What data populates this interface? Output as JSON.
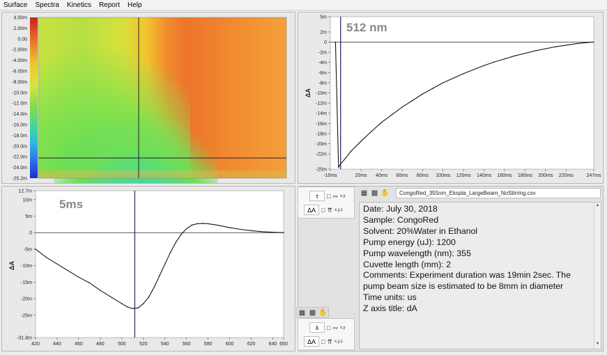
{
  "menu": [
    "Surface",
    "Spectra",
    "Kinetics",
    "Report",
    "Help"
  ],
  "surface_plot": {
    "y_ticks": [
      "4.00m",
      "2.00m",
      "0.00",
      "-2.00m",
      "-4.00m",
      "-6.00m",
      "-8.00m",
      "-10.0m",
      "-12.0m",
      "-14.0m",
      "-16.0m",
      "-18.0m",
      "-20.0m",
      "-22.0m",
      "-24.0m",
      "-25.2m"
    ],
    "colorbar": [
      "#c4251c",
      "#e8702a",
      "#f0c32c",
      "#d9e33c",
      "#7fdc4e",
      "#3fd79a",
      "#30b8e2",
      "#2e78e8",
      "#1a2fd0"
    ],
    "cursor_wavelength": 512,
    "cursor_time": "5ms"
  },
  "kinetics": {
    "label": "512 nm",
    "ylabel": "ΔA",
    "y_ticks": [
      "5m",
      "2m",
      "0",
      "-2m",
      "-4m",
      "-6m",
      "-8m",
      "-10m",
      "-12m",
      "-14m",
      "-16m",
      "-18m",
      "-20m",
      "-22m",
      "-25m"
    ],
    "x_ticks": [
      "-10ms",
      "20ms",
      "40ms",
      "60ms",
      "80ms",
      "100ms",
      "120ms",
      "140ms",
      "160ms",
      "180ms",
      "200ms",
      "220ms",
      "247ms"
    ]
  },
  "spectrum": {
    "label": "5ms",
    "ylabel": "ΔA",
    "y_ticks": [
      "12.7m",
      "10m",
      "5m",
      "0",
      "-5m",
      "-10m",
      "-15m",
      "-20m",
      "-25m",
      "-31.8m"
    ],
    "x_ticks": [
      "420",
      "440",
      "460",
      "480",
      "500",
      "520",
      "540",
      "560",
      "580",
      "600",
      "620",
      "640",
      "650"
    ]
  },
  "controls": {
    "tau_symbol": "τ",
    "delta_a_symbol": "ΔA",
    "lambda_symbol": "λ",
    "xy_label": "x,y",
    "xyz_label": "x,y,z"
  },
  "file_name": "CongoRed_355nm_Ekspla_LargeBeam_NoStirring.csv",
  "info_lines": [
    "Date: July 30, 2018",
    "Sample: CongoRed",
    "Solvent: 20%Water in Ethanol",
    "Pump energy (uJ): 1200",
    "Pump wavelength (nm): 355",
    "Cuvette length (mm): 2",
    "Comments: Experiment duration was 19min 2sec. The",
    "pump beam size is estimated to be 8mm in diameter",
    "Time units: us",
    "Z axis title: dA"
  ],
  "chart_data": [
    {
      "type": "line",
      "title": "512 nm",
      "xlabel": "",
      "ylabel": "ΔA",
      "xlim": [
        -10,
        247
      ],
      "ylim": [
        -25,
        5
      ],
      "x_unit": "ms",
      "y_unit": "m",
      "series": [
        {
          "x": [
            -5,
            -2,
            0,
            5,
            10,
            20,
            30,
            40,
            50,
            60,
            70,
            80,
            90,
            100,
            110,
            120,
            130,
            140,
            150,
            160,
            170,
            180,
            190,
            200,
            210,
            220,
            230,
            240,
            247
          ],
          "y": [
            0,
            -24.6,
            -24.0,
            -22.8,
            -21.5,
            -19.5,
            -17.6,
            -15.8,
            -14.3,
            -12.8,
            -11.5,
            -10.2,
            -9.1,
            -8.0,
            -7.1,
            -6.2,
            -5.4,
            -4.6,
            -3.9,
            -3.3,
            -2.7,
            -2.2,
            -1.7,
            -1.3,
            -0.9,
            -0.6,
            -0.3,
            -0.1,
            0
          ]
        }
      ]
    },
    {
      "type": "line",
      "title": "5ms",
      "xlabel": "",
      "ylabel": "ΔA",
      "xlim": [
        420,
        650
      ],
      "ylim": [
        -31.8,
        12.7
      ],
      "x_unit": "nm",
      "y_unit": "m",
      "series": [
        {
          "x": [
            420,
            430,
            440,
            450,
            460,
            470,
            480,
            490,
            500,
            505,
            510,
            515,
            520,
            525,
            530,
            535,
            540,
            545,
            550,
            555,
            560,
            565,
            570,
            575,
            580,
            590,
            600,
            610,
            620,
            630,
            640,
            650
          ],
          "y": [
            -5,
            -7.5,
            -9.5,
            -11.5,
            -13.5,
            -15.2,
            -17.5,
            -19.5,
            -21.5,
            -22.5,
            -23.0,
            -22.8,
            -21.5,
            -19.5,
            -16.5,
            -13.0,
            -9.5,
            -6.0,
            -3.0,
            -0.5,
            1.2,
            2.3,
            2.7,
            2.8,
            2.7,
            2.2,
            1.5,
            1.0,
            0.6,
            0.3,
            0.1,
            0
          ]
        }
      ]
    }
  ]
}
